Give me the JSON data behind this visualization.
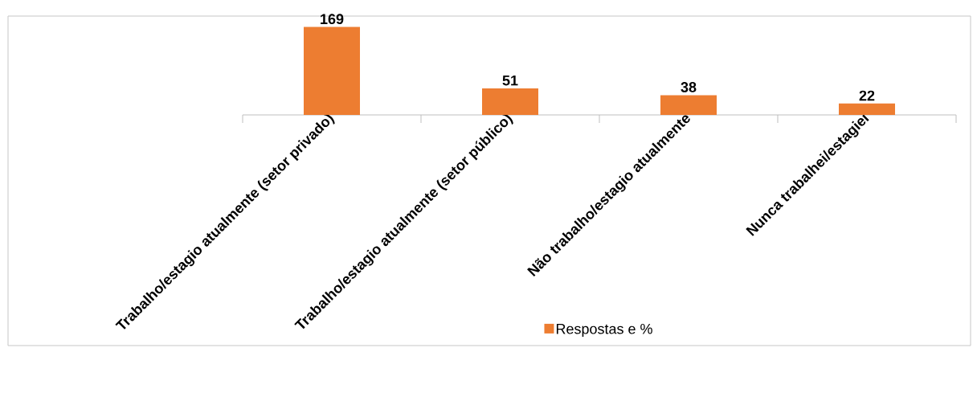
{
  "chart_data": {
    "type": "bar",
    "categories": [
      "Trabalho/estagio atualmente (setor privado)",
      "Trabalho/estagio atualmente (setor público)",
      "Não trabalho/estagio atualmente",
      "Nunca trabalhei/estagiei"
    ],
    "series": [
      {
        "name": "Respostas e %",
        "color": "#ed7d31",
        "values": [
          169,
          51,
          38,
          22
        ]
      }
    ],
    "ylim": [
      0,
      190
    ],
    "tick_labels": "x",
    "data_labels": true,
    "legend": "bottom"
  }
}
